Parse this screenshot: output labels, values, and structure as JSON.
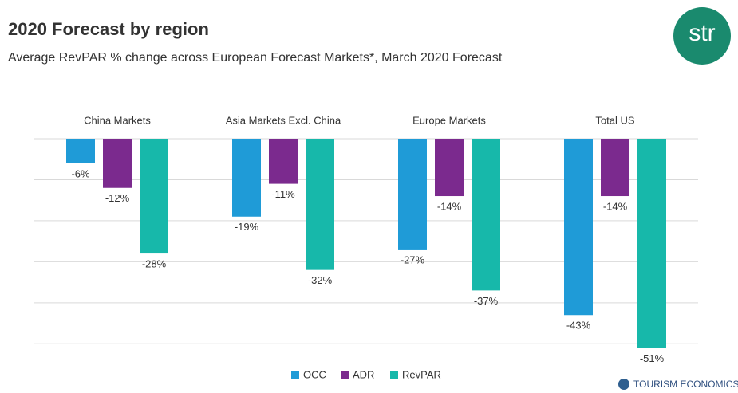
{
  "chart_data": {
    "type": "bar",
    "title": "2020 Forecast by region",
    "subtitle": "Average RevPAR % change across European Forecast Markets*, March 2020 Forecast",
    "categories": [
      "China Markets",
      "Asia Markets Excl. China",
      "Europe Markets",
      "Total US"
    ],
    "series": [
      {
        "name": "OCC",
        "color": "#1f9bd7",
        "values": [
          -6,
          -19,
          -27,
          -43
        ],
        "value_labels": [
          "-6%",
          "-19%",
          "-27%",
          "-43%"
        ]
      },
      {
        "name": "ADR",
        "color": "#7b2a8e",
        "values": [
          -12,
          -11,
          -14,
          -14
        ],
        "value_labels": [
          "-12%",
          "-11%",
          "-14%",
          "-14%"
        ]
      },
      {
        "name": "RevPAR",
        "color": "#17b8aa",
        "values": [
          -28,
          -32,
          -37,
          -51
        ],
        "value_labels": [
          "-28%",
          "-32%",
          "-37%",
          "-51%"
        ]
      }
    ],
    "ylim": [
      -55,
      0
    ],
    "yticks": [
      0,
      -10,
      -20,
      -30,
      -40,
      -50
    ],
    "grid": true,
    "legend": "bottom"
  },
  "logo": "str",
  "footer": "TOURISM ECONOMICS"
}
